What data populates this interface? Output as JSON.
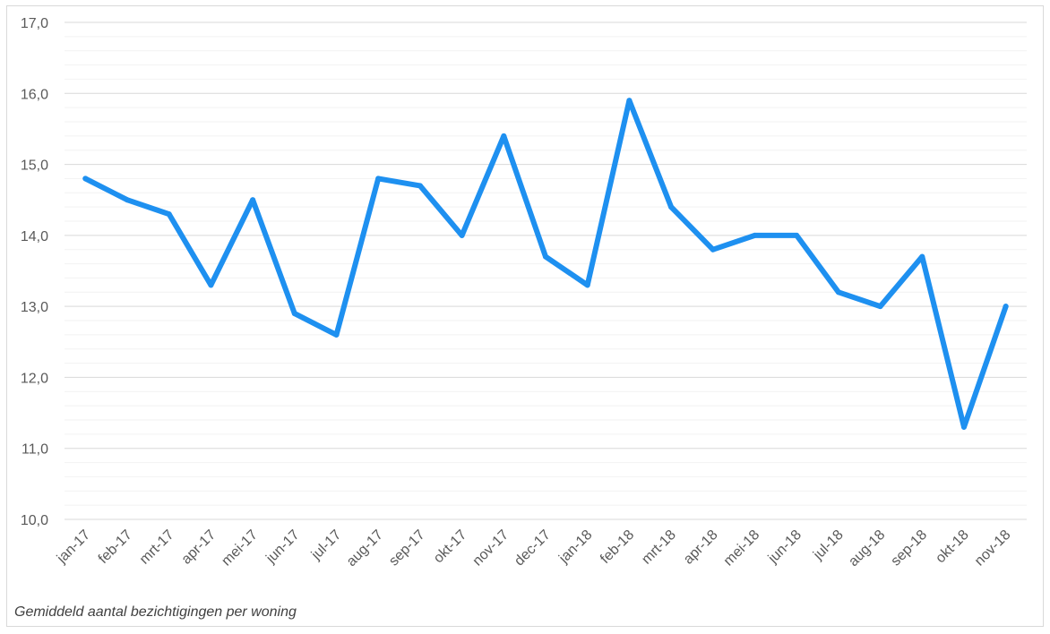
{
  "chart_data": {
    "type": "line",
    "categories": [
      "jan-17",
      "feb-17",
      "mrt-17",
      "apr-17",
      "mei-17",
      "jun-17",
      "jul-17",
      "aug-17",
      "sep-17",
      "okt-17",
      "nov-17",
      "dec-17",
      "jan-18",
      "feb-18",
      "mrt-18",
      "apr-18",
      "mei-18",
      "jun-18",
      "jul-18",
      "aug-18",
      "sep-18",
      "okt-18",
      "nov-18"
    ],
    "series": [
      {
        "values": [
          14.8,
          14.5,
          14.3,
          13.3,
          14.5,
          12.9,
          12.6,
          14.8,
          14.7,
          14.0,
          15.4,
          13.7,
          13.3,
          15.9,
          14.4,
          13.8,
          14.0,
          14.0,
          13.2,
          13.0,
          13.7,
          11.3,
          13.0
        ],
        "color": "#1e90f0"
      }
    ],
    "ylim": [
      10,
      17
    ],
    "yticks": [
      "10,0",
      "11,0",
      "12,0",
      "13,0",
      "14,0",
      "15,0",
      "16,0",
      "17,0"
    ],
    "grid": true,
    "caption": "Gemiddeld aantal bezichtigingen per woning"
  }
}
